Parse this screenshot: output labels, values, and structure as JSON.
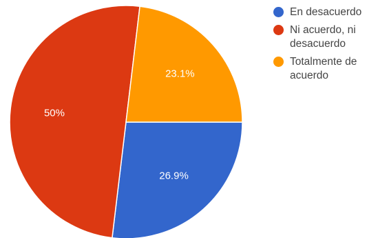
{
  "chart_data": {
    "type": "pie",
    "title": "",
    "slices": [
      {
        "label": "En desacuerdo",
        "value": 26.9,
        "display": "26.9%",
        "color": "#3366cc"
      },
      {
        "label": "Ni acuerdo, ni desacuerdo",
        "value": 50,
        "display": "50%",
        "color": "#dc3912"
      },
      {
        "label": "Totalmente de acuerdo",
        "value": 23.1,
        "display": "23.1%",
        "color": "#ff9900"
      }
    ],
    "legend_position": "right"
  },
  "legend": {
    "items": [
      {
        "label": "En desacuerdo",
        "color": "#3366cc"
      },
      {
        "label": "Ni acuerdo, ni desacuerdo",
        "color": "#dc3912"
      },
      {
        "label": "Totalmente de acuerdo",
        "color": "#ff9900"
      }
    ]
  }
}
